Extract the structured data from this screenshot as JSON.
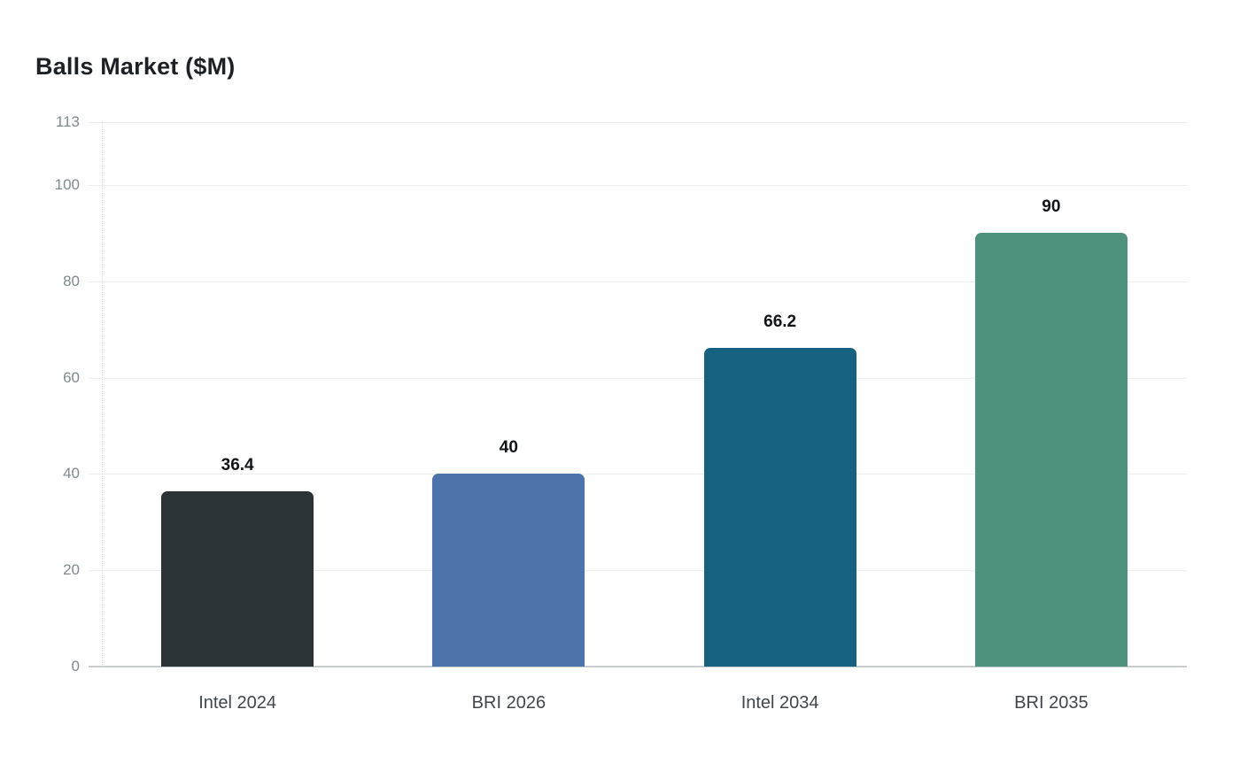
{
  "title": "Balls Market ($M)",
  "chart_data": {
    "type": "bar",
    "title": "Balls Market ($M)",
    "categories": [
      "Intel 2024",
      "BRI 2026",
      "Intel 2034",
      "BRI 2035"
    ],
    "values": [
      36.4,
      40,
      66.2,
      90
    ],
    "value_labels": [
      "36.4",
      "40",
      "66.2",
      "90"
    ],
    "bar_colors": [
      "#2b3337",
      "#4d73ac",
      "#16617f",
      "#50907e"
    ],
    "xlabel": "",
    "ylabel": "",
    "ylim": [
      0,
      113
    ],
    "yticks": [
      0,
      20,
      40,
      60,
      80,
      100,
      113
    ],
    "ytick_labels": [
      "0",
      "20",
      "40",
      "60",
      "80",
      "100",
      "113"
    ],
    "grid": true,
    "legend": false,
    "background": "#ffffff",
    "axis_text_color": "#7f8a8f",
    "category_text_color": "#40474c",
    "value_text_color": "#121518",
    "gridline_color": "#ededed",
    "baseline_color": "#c9cdce"
  }
}
